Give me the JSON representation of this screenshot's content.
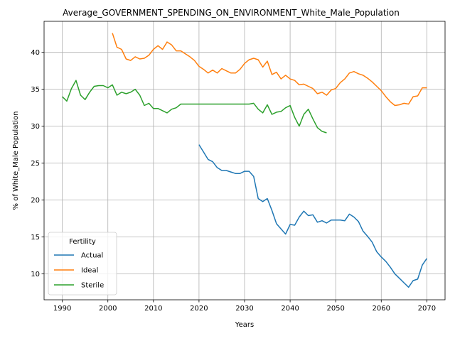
{
  "chart_data": {
    "type": "line",
    "title": "Average_GOVERNMENT_SPENDING_ON_ENVIRONMENT_White_Male_Population",
    "xlabel": "Years",
    "ylabel": "% of White_Male Population",
    "xlim": [
      1986,
      2074
    ],
    "ylim": [
      6.5,
      44.2
    ],
    "xticks": [
      1990,
      2000,
      2010,
      2020,
      2030,
      2040,
      2050,
      2060,
      2070
    ],
    "yticks": [
      10,
      15,
      20,
      25,
      30,
      35,
      40
    ],
    "grid": true,
    "legend": {
      "title": "Fertility",
      "placement": "lower-left"
    },
    "series": [
      {
        "name": "Actual",
        "color": "#1f77b4",
        "x": [
          2020,
          2021,
          2022,
          2023,
          2024,
          2025,
          2026,
          2027,
          2028,
          2029,
          2030,
          2031,
          2032,
          2033,
          2034,
          2035,
          2036,
          2037,
          2038,
          2039,
          2040,
          2041,
          2042,
          2043,
          2044,
          2045,
          2046,
          2047,
          2048,
          2049,
          2050,
          2051,
          2052,
          2053,
          2054,
          2055,
          2056,
          2057,
          2058,
          2059,
          2060,
          2061,
          2062,
          2063,
          2064,
          2065,
          2066,
          2067,
          2068,
          2069,
          2070
        ],
        "y": [
          27.5,
          26.5,
          25.5,
          25.2,
          24.4,
          24.0,
          24.0,
          23.8,
          23.6,
          23.6,
          23.9,
          23.9,
          23.2,
          20.2,
          19.8,
          20.2,
          18.6,
          16.8,
          16.1,
          15.4,
          16.7,
          16.6,
          17.7,
          18.5,
          17.9,
          18.0,
          17.0,
          17.2,
          16.9,
          17.3,
          17.3,
          17.3,
          17.2,
          18.1,
          17.7,
          17.1,
          15.8,
          15.1,
          14.3,
          13.0,
          12.3,
          11.7,
          10.9,
          10.0,
          9.4,
          8.8,
          8.2,
          9.1,
          9.3,
          11.2,
          12.1
        ]
      },
      {
        "name": "Ideal",
        "color": "#ff7f0e",
        "x": [
          2001,
          2002,
          2003,
          2004,
          2005,
          2006,
          2007,
          2008,
          2009,
          2010,
          2011,
          2012,
          2013,
          2014,
          2015,
          2016,
          2017,
          2018,
          2019,
          2020,
          2021,
          2022,
          2023,
          2024,
          2025,
          2026,
          2027,
          2028,
          2029,
          2030,
          2031,
          2032,
          2033,
          2034,
          2035,
          2036,
          2037,
          2038,
          2039,
          2040,
          2041,
          2042,
          2043,
          2044,
          2045,
          2046,
          2047,
          2048,
          2049,
          2050,
          2051,
          2052,
          2053,
          2054,
          2055,
          2056,
          2057,
          2058,
          2059,
          2060,
          2061,
          2062,
          2063,
          2064,
          2065,
          2066,
          2067,
          2068,
          2069,
          2070
        ],
        "y": [
          42.6,
          40.7,
          40.4,
          39.1,
          38.9,
          39.4,
          39.1,
          39.2,
          39.6,
          40.4,
          40.9,
          40.4,
          41.4,
          41.0,
          40.2,
          40.2,
          39.8,
          39.4,
          38.9,
          38.1,
          37.7,
          37.2,
          37.6,
          37.2,
          37.8,
          37.5,
          37.2,
          37.2,
          37.7,
          38.5,
          39.0,
          39.2,
          39.0,
          38.0,
          38.8,
          37.0,
          37.3,
          36.4,
          36.9,
          36.4,
          36.2,
          35.6,
          35.7,
          35.4,
          35.1,
          34.4,
          34.6,
          34.2,
          34.9,
          35.1,
          35.9,
          36.4,
          37.2,
          37.4,
          37.1,
          36.9,
          36.5,
          36.0,
          35.4,
          34.8,
          34.0,
          33.3,
          32.8,
          32.9,
          33.1,
          33.0,
          34.0,
          34.1,
          35.2,
          35.2
        ]
      },
      {
        "name": "Sterile",
        "color": "#2ca02c",
        "x": [
          1990,
          1991,
          1992,
          1993,
          1994,
          1995,
          1996,
          1997,
          1998,
          1999,
          2000,
          2001,
          2002,
          2003,
          2004,
          2005,
          2006,
          2007,
          2008,
          2009,
          2010,
          2011,
          2012,
          2013,
          2014,
          2015,
          2016,
          2017,
          2018,
          2019,
          2020,
          2021,
          2022,
          2023,
          2024,
          2025,
          2026,
          2027,
          2028,
          2029,
          2030,
          2031,
          2032,
          2033,
          2034,
          2035,
          2036,
          2037,
          2038,
          2039,
          2040,
          2041,
          2042,
          2043,
          2044,
          2045,
          2046,
          2047,
          2048
        ],
        "y": [
          34.0,
          33.4,
          35.1,
          36.2,
          34.2,
          33.6,
          34.6,
          35.4,
          35.5,
          35.5,
          35.2,
          35.6,
          34.2,
          34.6,
          34.4,
          34.6,
          35.0,
          34.2,
          32.8,
          33.1,
          32.4,
          32.4,
          32.1,
          31.8,
          32.3,
          32.5,
          33.0,
          33.0,
          33.0,
          33.0,
          33.0,
          33.0,
          33.0,
          33.0,
          33.0,
          33.0,
          33.0,
          33.0,
          33.0,
          33.0,
          33.0,
          33.0,
          33.1,
          32.3,
          31.8,
          32.9,
          31.6,
          31.9,
          32.0,
          32.5,
          32.8,
          31.2,
          30.0,
          31.6,
          32.3,
          31.0,
          29.8,
          29.3,
          29.1
        ]
      }
    ]
  }
}
